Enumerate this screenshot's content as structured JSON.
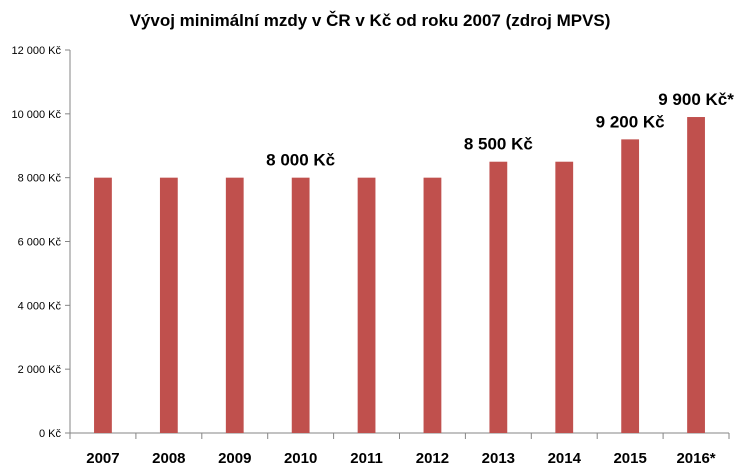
{
  "chart_data": {
    "type": "bar",
    "title": "Vývoj minimální  mzdy v ČR v Kč od roku 2007 (zdroj MPVS)",
    "xlabel": "",
    "ylabel": "",
    "categories": [
      "2007",
      "2008",
      "2009",
      "2010",
      "2011",
      "2012",
      "2013",
      "2014",
      "2015",
      "2016*"
    ],
    "values": [
      8000,
      8000,
      8000,
      8000,
      8000,
      8000,
      8500,
      8500,
      9200,
      9900
    ],
    "ylim": [
      0,
      12000
    ],
    "y_ticks": [
      0,
      2000,
      4000,
      6000,
      8000,
      10000,
      12000
    ],
    "y_tick_labels": [
      "0 Kč",
      "2 000 Kč",
      "4 000 Kč",
      "6 000 Kč",
      "8 000 Kč",
      "10 000 Kč",
      "12 000 Kč"
    ],
    "grid": false,
    "legend": "none",
    "bar_color": "#C0504D",
    "axis_color": "#868686",
    "data_labels": [
      {
        "category": "2010",
        "text": "8 000 Kč"
      },
      {
        "category": "2013",
        "text": "8 500 Kč"
      },
      {
        "category": "2015",
        "text": "9 200 Kč"
      },
      {
        "category": "2016*",
        "text": "9 900 Kč*"
      }
    ]
  }
}
